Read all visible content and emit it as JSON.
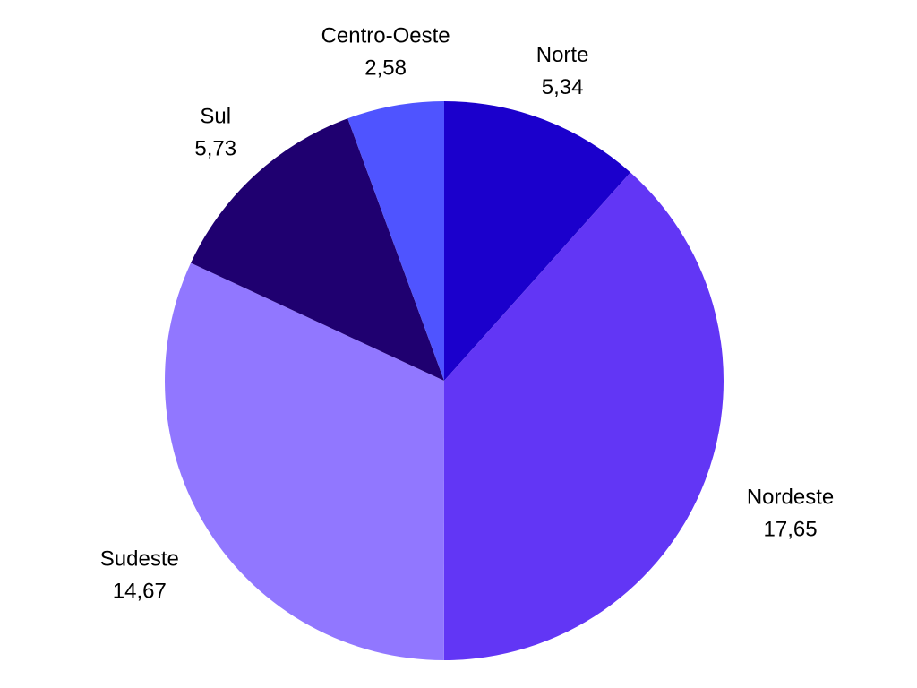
{
  "chart_data": {
    "type": "pie",
    "categories": [
      "Norte",
      "Nordeste",
      "Sudeste",
      "Sul",
      "Centro-Oeste"
    ],
    "values": [
      5.34,
      17.65,
      14.67,
      5.73,
      2.58
    ],
    "value_labels": [
      "5,34",
      "17,65",
      "14,67",
      "5,73",
      "2,58"
    ],
    "colors": [
      "#1b00cc",
      "#6236f5",
      "#9177ff",
      "#1f0070",
      "#4f54ff"
    ],
    "start": "top",
    "direction": "clockwise",
    "legend": "none"
  }
}
